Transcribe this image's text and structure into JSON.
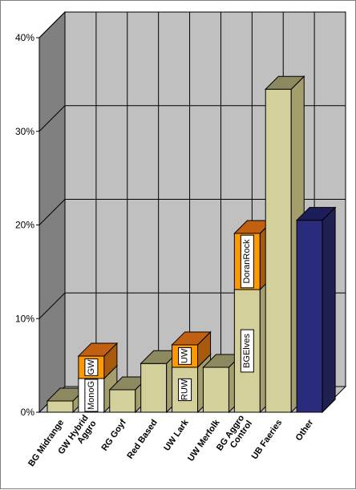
{
  "chart_data": {
    "type": "bar",
    "style": "3d-stacked-column",
    "ylim": [
      0,
      40
    ],
    "yticks": [
      "0%",
      "10%",
      "20%",
      "30%",
      "40%"
    ],
    "grid": true,
    "categories": [
      "BG Midrange",
      "GW Hybrid\nAggro",
      "RG Goyf",
      "Red Based",
      "UW Lark",
      "UW Merfolk",
      "BG Aggro\nControl",
      "UB Faeries",
      "Other"
    ],
    "bars": [
      {
        "category": "BG Midrange",
        "segments": [
          {
            "value": 1.2,
            "color": "#d4d09c",
            "top": "#8c8860",
            "side": "#a39e6b",
            "label": ""
          }
        ]
      },
      {
        "category": "GW Hybrid\nAggro",
        "segments": [
          {
            "value": 3.6,
            "color": "#ffffff",
            "top": "#8c8860",
            "side": "#a39e6b",
            "label": "MonoG"
          },
          {
            "value": 2.4,
            "color": "#ff9900",
            "top": "#c06010",
            "side": "#a85a0c",
            "label": "GW"
          }
        ]
      },
      {
        "category": "RG Goyf",
        "segments": [
          {
            "value": 2.4,
            "color": "#d4d09c",
            "top": "#8c8860",
            "side": "#a39e6b",
            "label": ""
          }
        ]
      },
      {
        "category": "Red Based",
        "segments": [
          {
            "value": 5.2,
            "color": "#d4d09c",
            "top": "#8c8860",
            "side": "#a39e6b",
            "label": ""
          }
        ]
      },
      {
        "category": "UW Lark",
        "segments": [
          {
            "value": 4.8,
            "color": "#d4d09c",
            "top": "#8c8860",
            "side": "#a39e6b",
            "label": "RUW"
          },
          {
            "value": 2.4,
            "color": "#ff9900",
            "top": "#c06010",
            "side": "#a85a0c",
            "label": "UW"
          }
        ]
      },
      {
        "category": "UW Merfolk",
        "segments": [
          {
            "value": 4.8,
            "color": "#d4d09c",
            "top": "#8c8860",
            "side": "#a39e6b",
            "label": ""
          }
        ]
      },
      {
        "category": "BG Aggro\nControl",
        "segments": [
          {
            "value": 13.1,
            "color": "#d4d09c",
            "top": "#8c8860",
            "side": "#a39e6b",
            "label": "BGElves"
          },
          {
            "value": 6.0,
            "color": "#ff9900",
            "top": "#c06010",
            "side": "#a85a0c",
            "label": "DoranRock"
          }
        ]
      },
      {
        "category": "UB Faeries",
        "segments": [
          {
            "value": 34.5,
            "color": "#d4d09c",
            "top": "#8c8860",
            "side": "#a39e6b",
            "label": ""
          }
        ]
      },
      {
        "category": "Other",
        "segments": [
          {
            "value": 20.5,
            "color": "#2b2b7e",
            "top": "#1c1c5a",
            "side": "#202050",
            "label": ""
          }
        ]
      }
    ]
  }
}
